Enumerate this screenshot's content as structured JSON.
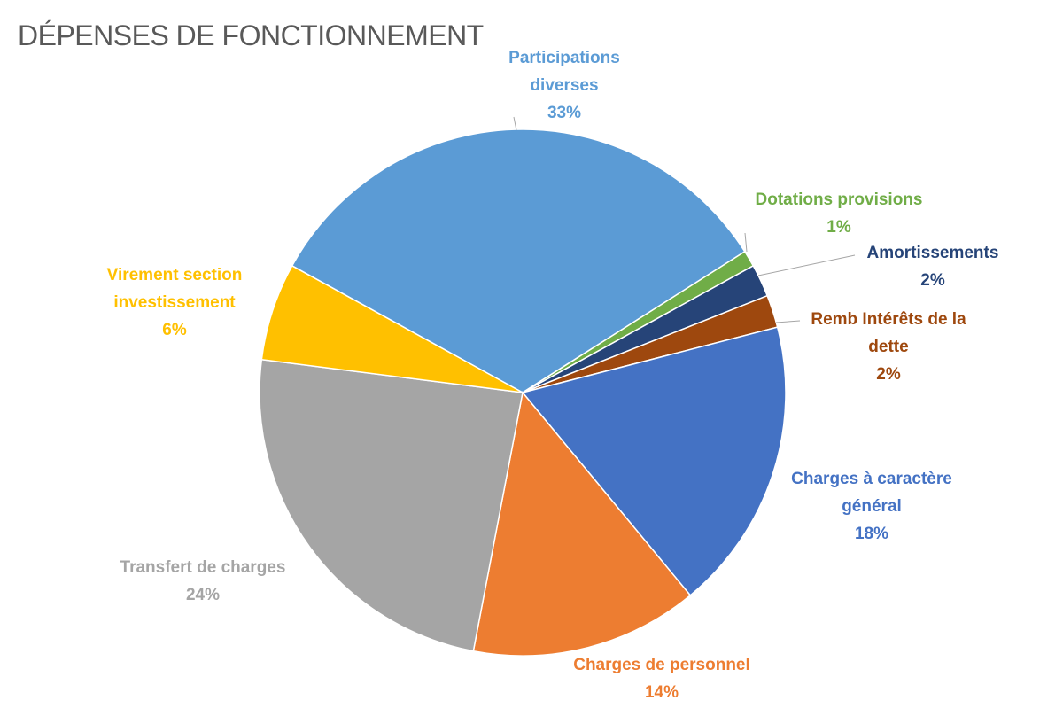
{
  "chart_data": {
    "type": "pie",
    "title": "DÉPENSES DE FONCTIONNEMENT",
    "categories": [
      "Participations diverses",
      "Dotations provisions",
      "Amortissements",
      "Remb Intérêts de la dette",
      "Charges à caractère général",
      "Charges de personnel",
      "Transfert de charges",
      "Virement section investissement"
    ],
    "values": [
      33,
      1,
      2,
      2,
      18,
      14,
      24,
      6
    ],
    "value_labels": [
      "33%",
      "1%",
      "2%",
      "2%",
      "18%",
      "14%",
      "24%",
      "6%"
    ],
    "colors": [
      "#5b9bd5",
      "#70ad47",
      "#264478",
      "#9e480e",
      "#4472c4",
      "#ed7d31",
      "#a5a5a5",
      "#ffc000"
    ]
  }
}
